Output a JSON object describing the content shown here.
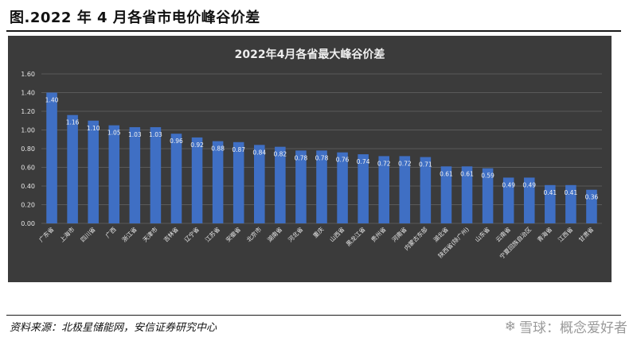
{
  "heading": "图.2022 年 4 月各省市电价峰谷价差",
  "source": "资料来源：北极星储能网，安信证券研究中心",
  "watermark": {
    "logo": "❄",
    "text": "雪球：概念爱好者"
  },
  "colors": {
    "panel": "#3b3b3b",
    "bar": "#3f6fc4",
    "grid": "#5a5a5a",
    "text": "#e6e6e6"
  },
  "chart_data": {
    "type": "bar",
    "title": "2022年4月各省最大峰谷价差",
    "ylim": [
      0,
      1.6
    ],
    "yticks": [
      "0.00",
      "0.20",
      "0.40",
      "0.60",
      "0.80",
      "1.00",
      "1.20",
      "1.40",
      "1.60"
    ],
    "grid": true,
    "categories": [
      "广东省",
      "上海市",
      "四川省",
      "广西",
      "浙江省",
      "天津市",
      "吉林省",
      "辽宁省",
      "江苏省",
      "安徽省",
      "北京市",
      "湖南省",
      "河北省",
      "重庆",
      "山西省",
      "黑龙江省",
      "贵州省",
      "河南省",
      "内蒙古东部",
      "湖北省",
      "陕西省(除广州)",
      "山东省",
      "云南省",
      "宁夏回族自治区",
      "青海省",
      "江西省",
      "甘肃省"
    ],
    "values": [
      1.4,
      1.16,
      1.1,
      1.05,
      1.03,
      1.03,
      0.96,
      0.92,
      0.88,
      0.87,
      0.84,
      0.82,
      0.78,
      0.78,
      0.76,
      0.74,
      0.72,
      0.72,
      0.71,
      0.61,
      0.61,
      0.59,
      0.49,
      0.49,
      0.41,
      0.41,
      0.36
    ],
    "labels": [
      "1.40",
      "1.16",
      "1.10",
      "1.05",
      "1.03",
      "1.03",
      "0.96",
      "0.92",
      "0.88",
      "0.87",
      "0.84",
      "0.82",
      "0.78",
      "0.78",
      "0.76",
      "0.74",
      "0.72",
      "0.72",
      "0.71",
      "0.61",
      "0.61",
      "0.59",
      "0.49",
      "0.49",
      "0.41",
      "0.41",
      "0.36"
    ]
  }
}
